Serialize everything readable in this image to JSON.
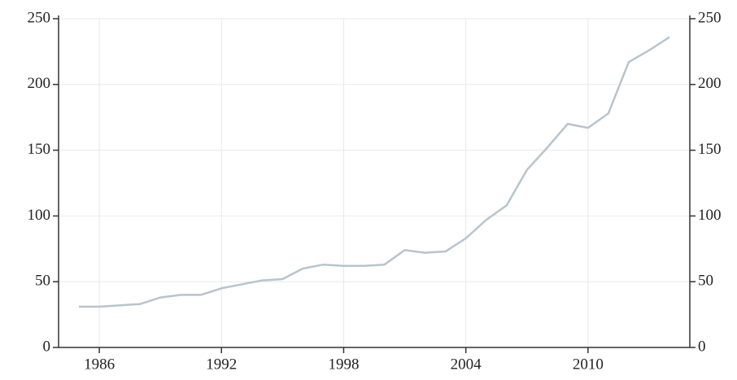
{
  "chart_data": {
    "type": "line",
    "x": [
      1985,
      1986,
      1987,
      1988,
      1989,
      1990,
      1991,
      1992,
      1993,
      1994,
      1995,
      1996,
      1997,
      1998,
      1999,
      2000,
      2001,
      2002,
      2003,
      2004,
      2005,
      2006,
      2007,
      2008,
      2009,
      2010,
      2011,
      2012,
      2013,
      2014
    ],
    "series": [
      {
        "color": "#b8c4cc",
        "axis": "y",
        "values": [
          31,
          31,
          32,
          33,
          38,
          40,
          40,
          45,
          48,
          51,
          52,
          60,
          63,
          62,
          62,
          63,
          74,
          72,
          73,
          83,
          97,
          108,
          135,
          152,
          170,
          167,
          178,
          217,
          226,
          236
        ]
      }
    ],
    "xlim": [
      1984,
      2015
    ],
    "xticks": [
      1986,
      1992,
      1998,
      2004,
      2010
    ],
    "ylim": [
      0,
      250
    ],
    "yticks": [
      0,
      50,
      100,
      150,
      200,
      250
    ],
    "y2lim": [
      0,
      250
    ],
    "y2ticks": [
      0,
      50,
      100,
      150,
      200,
      250
    ],
    "grid": true
  }
}
